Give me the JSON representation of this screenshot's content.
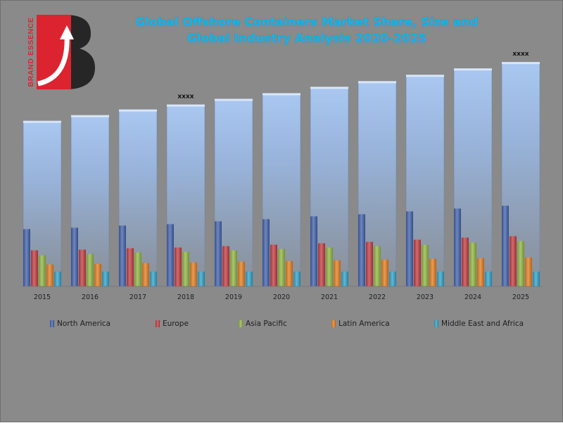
{
  "logo": {
    "text": "BRAND ESSENCE"
  },
  "chart_data": {
    "type": "bar",
    "title_lines": [
      "Global Offshore Containers  Market Share, Size and",
      "Global Industry Analysis 2020-2025"
    ],
    "categories": [
      "2015",
      "2016",
      "2017",
      "2018",
      "2019",
      "2020",
      "2021",
      "2022",
      "2023",
      "2024",
      "2025"
    ],
    "total": {
      "values": [
        232,
        240,
        248,
        255,
        263,
        271,
        280,
        288,
        297,
        306,
        315
      ],
      "annotations": [
        {
          "category": "2018",
          "text": "xxxx"
        },
        {
          "category": "2025",
          "text": "xxxx"
        }
      ]
    },
    "series": [
      {
        "name": "North America",
        "color": "#3f5fa8",
        "values": [
          81,
          83,
          86,
          88,
          92,
          95,
          99,
          102,
          106,
          110,
          114
        ]
      },
      {
        "name": "Europe",
        "color": "#c0393d",
        "values": [
          51,
          52,
          54,
          55,
          57,
          59,
          61,
          63,
          66,
          69,
          71
        ]
      },
      {
        "name": "Asia Pacific",
        "color": "#8fb33f",
        "values": [
          44,
          46,
          48,
          49,
          51,
          53,
          55,
          57,
          59,
          62,
          64
        ]
      },
      {
        "name": "Latin America",
        "color": "#e07b1e",
        "values": [
          31,
          32,
          33,
          34,
          35,
          36,
          37,
          38,
          39,
          40,
          41
        ]
      },
      {
        "name": "Middle East and Africa",
        "color": "#2f9fc4",
        "values": [
          21,
          21,
          21,
          21,
          21,
          21,
          21,
          21,
          21,
          21,
          21
        ]
      }
    ],
    "ylim": [
      0,
      330
    ],
    "grid": false,
    "legend": "bottom"
  }
}
